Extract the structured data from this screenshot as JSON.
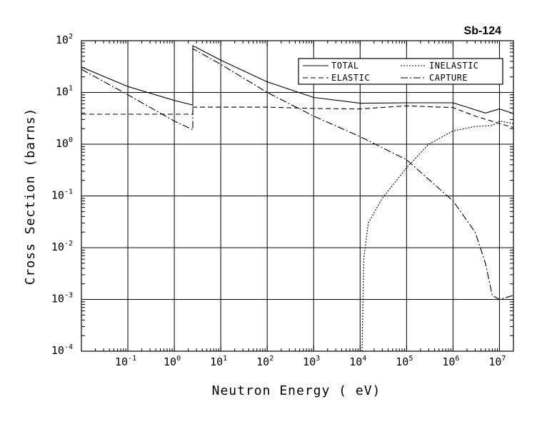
{
  "chart_data": {
    "type": "line",
    "title": "Sb-124",
    "xlabel": "Neutron Energy ( eV)",
    "ylabel": "Cross Section (barns)",
    "xscale": "log",
    "yscale": "log",
    "xlim": [
      0.01,
      20000000
    ],
    "ylim": [
      0.0001,
      100
    ],
    "grid": true,
    "legend_position": "top-right",
    "x_ticks": [
      {
        "base": "10",
        "exp": "-1",
        "value": 0.1
      },
      {
        "base": "10",
        "exp": "0",
        "value": 1
      },
      {
        "base": "10",
        "exp": "1",
        "value": 10
      },
      {
        "base": "10",
        "exp": "2",
        "value": 100
      },
      {
        "base": "10",
        "exp": "3",
        "value": 1000
      },
      {
        "base": "10",
        "exp": "4",
        "value": 10000
      },
      {
        "base": "10",
        "exp": "5",
        "value": 100000
      },
      {
        "base": "10",
        "exp": "6",
        "value": 1000000
      },
      {
        "base": "10",
        "exp": "7",
        "value": 10000000
      }
    ],
    "y_ticks": [
      {
        "base": "10",
        "exp": "2",
        "value": 100
      },
      {
        "base": "10",
        "exp": "1",
        "value": 10
      },
      {
        "base": "10",
        "exp": "0",
        "value": 1
      },
      {
        "base": "10",
        "exp": "-1",
        "value": 0.1
      },
      {
        "base": "10",
        "exp": "-2",
        "value": 0.01
      },
      {
        "base": "10",
        "exp": "-3",
        "value": 0.001
      },
      {
        "base": "10",
        "exp": "-4",
        "value": 0.0001
      }
    ],
    "series": [
      {
        "name": "TOTAL",
        "dash": "solid",
        "points": [
          [
            0.01,
            31
          ],
          [
            0.1,
            13
          ],
          [
            1,
            7
          ],
          [
            2.5,
            5.7
          ],
          [
            2.5,
            80
          ],
          [
            10,
            42
          ],
          [
            100,
            16
          ],
          [
            1000,
            8
          ],
          [
            10000,
            6.2
          ],
          [
            100000,
            6.3
          ],
          [
            1000000,
            6.3
          ],
          [
            2000000,
            5.2
          ],
          [
            5000000,
            4
          ],
          [
            10000000,
            4.8
          ],
          [
            20000000,
            3.9
          ]
        ]
      },
      {
        "name": "ELASTIC",
        "dash": "dashed",
        "points": [
          [
            0.01,
            3.8
          ],
          [
            2.5,
            3.8
          ],
          [
            2.5,
            5.2
          ],
          [
            100,
            5.2
          ],
          [
            1000,
            4.9
          ],
          [
            10000,
            4.8
          ],
          [
            100000,
            5.5
          ],
          [
            1000000,
            5.1
          ],
          [
            3000000,
            3.5
          ],
          [
            10000000,
            2.5
          ],
          [
            20000000,
            2.1
          ]
        ]
      },
      {
        "name": "INELASTIC",
        "dash": "dotted",
        "points": [
          [
            11000,
            0.0001
          ],
          [
            12000,
            0.006
          ],
          [
            15000,
            0.03
          ],
          [
            30000,
            0.09
          ],
          [
            100000,
            0.35
          ],
          [
            300000,
            1
          ],
          [
            1000000,
            1.8
          ],
          [
            3000000,
            2.2
          ],
          [
            7000000,
            2.3
          ],
          [
            10000000,
            2.8
          ],
          [
            20000000,
            2.5
          ]
        ]
      },
      {
        "name": "CAPTURE",
        "dash": "dashdot",
        "points": [
          [
            0.01,
            28
          ],
          [
            0.1,
            9
          ],
          [
            1,
            2.8
          ],
          [
            2.5,
            1.9
          ],
          [
            2.5,
            70
          ],
          [
            10,
            35
          ],
          [
            100,
            10
          ],
          [
            1000,
            3.5
          ],
          [
            10000,
            1.4
          ],
          [
            100000,
            0.5
          ],
          [
            1000000,
            0.08
          ],
          [
            3000000,
            0.02
          ],
          [
            5000000,
            0.005
          ],
          [
            7000000,
            0.0012
          ],
          [
            10000000,
            0.001
          ],
          [
            20000000,
            0.0012
          ]
        ]
      }
    ]
  }
}
